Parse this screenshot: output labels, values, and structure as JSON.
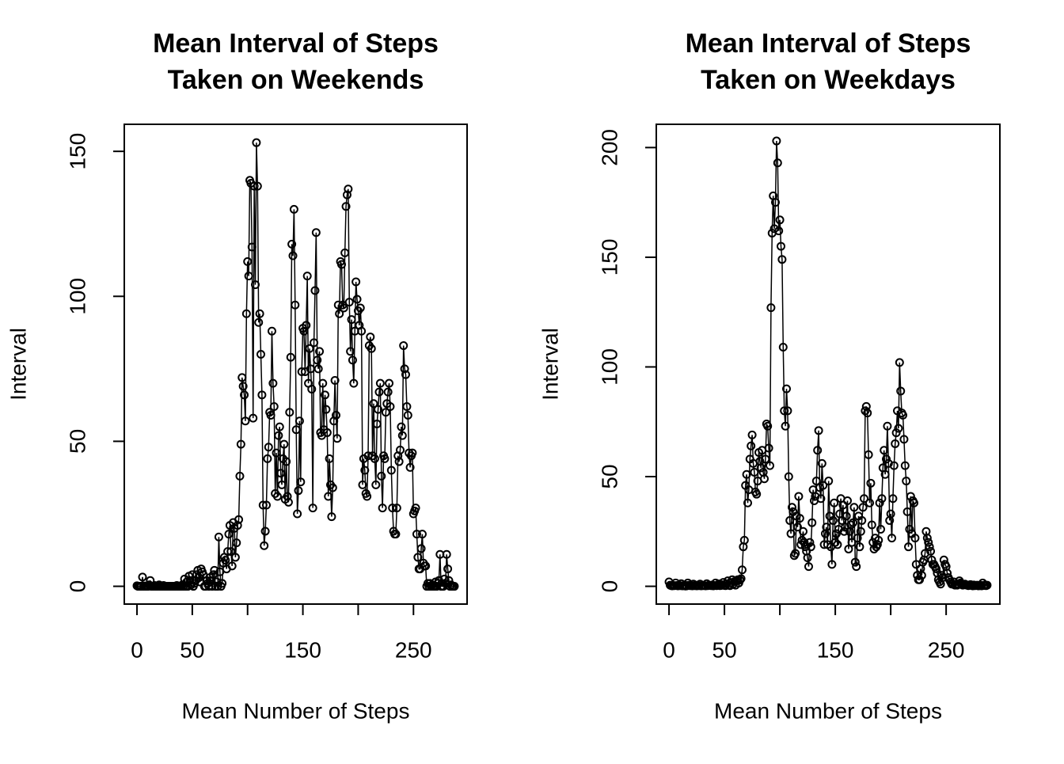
{
  "chart_data": [
    {
      "type": "line",
      "title": [
        "Mean Interval of Steps",
        "Taken on Weekends"
      ],
      "xlabel": "Mean Number of Steps",
      "ylabel": "Interval",
      "marker": "circle",
      "xlim": [
        -11.48,
        298.48
      ],
      "ylim": [
        -6.13,
        159.33
      ],
      "xticks": [
        0,
        50,
        {
          "value": 100,
          "label": null
        },
        150,
        {
          "value": 200,
          "label": null
        },
        250
      ],
      "yticks": [
        0,
        50,
        100,
        150
      ],
      "x": [
        0,
        1,
        2,
        3,
        4,
        5,
        6,
        7,
        8,
        9,
        10,
        11,
        12,
        13,
        14,
        15,
        16,
        17,
        18,
        19,
        20,
        21,
        22,
        23,
        24,
        25,
        26,
        27,
        28,
        29,
        30,
        31,
        32,
        33,
        34,
        35,
        36,
        37,
        38,
        39,
        40,
        41,
        42,
        43,
        44,
        45,
        46,
        47,
        48,
        49,
        50,
        51,
        52,
        53,
        54,
        55,
        56,
        57,
        58,
        59,
        60,
        61,
        62,
        63,
        64,
        65,
        66,
        67,
        68,
        69,
        70,
        71,
        72,
        73,
        74,
        75,
        76,
        77,
        78,
        79,
        80,
        81,
        82,
        83,
        84,
        85,
        86,
        87,
        88,
        89,
        90,
        91,
        92,
        93,
        94,
        95,
        96,
        97,
        98,
        99,
        100,
        101,
        102,
        103,
        104,
        105,
        106,
        107,
        108,
        109,
        110,
        111,
        112,
        113,
        114,
        115,
        116,
        117,
        118,
        119,
        120,
        121,
        122,
        123,
        124,
        125,
        126,
        127,
        128,
        129,
        130,
        131,
        132,
        133,
        134,
        135,
        136,
        137,
        138,
        139,
        140,
        141,
        142,
        143,
        144,
        145,
        146,
        147,
        148,
        149,
        150,
        151,
        152,
        153,
        154,
        155,
        156,
        157,
        158,
        159,
        160,
        161,
        162,
        163,
        164,
        165,
        166,
        167,
        168,
        169,
        170,
        171,
        172,
        173,
        174,
        175,
        176,
        177,
        178,
        179,
        180,
        181,
        182,
        183,
        184,
        185,
        186,
        187,
        188,
        189,
        190,
        191,
        192,
        193,
        194,
        195,
        196,
        197,
        198,
        199,
        200,
        201,
        202,
        203,
        204,
        205,
        206,
        207,
        208,
        209,
        210,
        211,
        212,
        213,
        214,
        215,
        216,
        217,
        218,
        219,
        220,
        221,
        222,
        223,
        224,
        225,
        226,
        227,
        228,
        229,
        230,
        231,
        232,
        233,
        234,
        235,
        236,
        237,
        238,
        239,
        240,
        241,
        242,
        243,
        244,
        245,
        246,
        247,
        248,
        249,
        250,
        251,
        252,
        253,
        254,
        255,
        256,
        257,
        258,
        259,
        260,
        261,
        262,
        263,
        264,
        265,
        266,
        267,
        268,
        269,
        270,
        271,
        272,
        273,
        274,
        275,
        276,
        277,
        278,
        279,
        280,
        281,
        282,
        283,
        284,
        285,
        286,
        287
      ],
      "series": [
        {
          "color": "#000000",
          "values": [
            0.2,
            0,
            0,
            0,
            0,
            3.2,
            0,
            0.1,
            0,
            0,
            0,
            0.5,
            2,
            0,
            0,
            0,
            0.3,
            0,
            0,
            0,
            0.5,
            0,
            0,
            0,
            0.3,
            0,
            0,
            0,
            0,
            0,
            0,
            0,
            0,
            0,
            0,
            0,
            0.3,
            0,
            0,
            0,
            0,
            0.5,
            0,
            2.5,
            0,
            1.5,
            0,
            3.5,
            2,
            0.5,
            4,
            0,
            1,
            2,
            4,
            5.5,
            3,
            1.5,
            6,
            5,
            4,
            0,
            0,
            2,
            1,
            0,
            3,
            2,
            0,
            4,
            5.5,
            0,
            1.5,
            0,
            17,
            5,
            0,
            1,
            8,
            10,
            9,
            6,
            12,
            18,
            21,
            12,
            7,
            22,
            20,
            10,
            15,
            21,
            23,
            38,
            49,
            72,
            69,
            66,
            57,
            94,
            112,
            107,
            140,
            139,
            117,
            58,
            138,
            104,
            153,
            138,
            91,
            94,
            80,
            66,
            28,
            14,
            19,
            28,
            44,
            48,
            60,
            59,
            88,
            70,
            62,
            32,
            46,
            31,
            52,
            55,
            39,
            35,
            44,
            49,
            30,
            43,
            31,
            29,
            60,
            79,
            118,
            114,
            130,
            97,
            54,
            25,
            33,
            57,
            36,
            74,
            89,
            88,
            74,
            90,
            107,
            70,
            82,
            75,
            68,
            27,
            84,
            102,
            122,
            78,
            75,
            81,
            53,
            52,
            70,
            54,
            66,
            61,
            53,
            31,
            44,
            35,
            24,
            34,
            57,
            71,
            59,
            51,
            97,
            94,
            112,
            111,
            97,
            96,
            115,
            131,
            135,
            137,
            98,
            81,
            92,
            78,
            70,
            88,
            105,
            99,
            95,
            90,
            96,
            88,
            35,
            44,
            40,
            32,
            31,
            45,
            83,
            86,
            82,
            45,
            63,
            44,
            35,
            56,
            61,
            67,
            70,
            38,
            27,
            45,
            44,
            60,
            63,
            67,
            70,
            62,
            40,
            27,
            19,
            18,
            18,
            27,
            45,
            43,
            47,
            55,
            52,
            83,
            75,
            73,
            62,
            59,
            46,
            41,
            45,
            46,
            25,
            26,
            27,
            18,
            10,
            6,
            6,
            13,
            18,
            8,
            7,
            7,
            0,
            1,
            0,
            1,
            0,
            0.5,
            0,
            0,
            1.5,
            0,
            1,
            2,
            11,
            0,
            0,
            0,
            2.5,
            1,
            11,
            6,
            2,
            0,
            0.5,
            0,
            0,
            0
          ]
        }
      ]
    },
    {
      "type": "line",
      "title": [
        "Mean Interval of Steps",
        "Taken on Weekdays"
      ],
      "xlabel": "Mean Number of Steps",
      "ylabel": "Interval",
      "marker": "circle",
      "xlim": [
        -11.48,
        298.48
      ],
      "ylim": [
        -8.1,
        210.6
      ],
      "xticks": [
        0,
        50,
        {
          "value": 100,
          "label": null
        },
        150,
        {
          "value": 200,
          "label": null
        },
        250
      ],
      "yticks": [
        0,
        50,
        100,
        150,
        200
      ],
      "x": [
        0,
        1,
        2,
        3,
        4,
        5,
        6,
        7,
        8,
        9,
        10,
        11,
        12,
        13,
        14,
        15,
        16,
        17,
        18,
        19,
        20,
        21,
        22,
        23,
        24,
        25,
        26,
        27,
        28,
        29,
        30,
        31,
        32,
        33,
        34,
        35,
        36,
        37,
        38,
        39,
        40,
        41,
        42,
        43,
        44,
        45,
        46,
        47,
        48,
        49,
        50,
        51,
        52,
        53,
        54,
        55,
        56,
        57,
        58,
        59,
        60,
        61,
        62,
        63,
        64,
        65,
        66,
        67,
        68,
        69,
        70,
        71,
        72,
        73,
        74,
        75,
        76,
        77,
        78,
        79,
        80,
        81,
        82,
        83,
        84,
        85,
        86,
        87,
        88,
        89,
        90,
        91,
        92,
        93,
        94,
        95,
        96,
        97,
        98,
        99,
        100,
        101,
        102,
        103,
        104,
        105,
        106,
        107,
        108,
        109,
        110,
        111,
        112,
        113,
        114,
        115,
        116,
        117,
        118,
        119,
        120,
        121,
        122,
        123,
        124,
        125,
        126,
        127,
        128,
        129,
        130,
        131,
        132,
        133,
        134,
        135,
        136,
        137,
        138,
        139,
        140,
        141,
        142,
        143,
        144,
        145,
        146,
        147,
        148,
        149,
        150,
        151,
        152,
        153,
        154,
        155,
        156,
        157,
        158,
        159,
        160,
        161,
        162,
        163,
        164,
        165,
        166,
        167,
        168,
        169,
        170,
        171,
        172,
        173,
        174,
        175,
        176,
        177,
        178,
        179,
        180,
        181,
        182,
        183,
        184,
        185,
        186,
        187,
        188,
        189,
        190,
        191,
        192,
        193,
        194,
        195,
        196,
        197,
        198,
        199,
        200,
        201,
        202,
        203,
        204,
        205,
        206,
        207,
        208,
        209,
        210,
        211,
        212,
        213,
        214,
        215,
        216,
        217,
        218,
        219,
        220,
        221,
        222,
        223,
        224,
        225,
        226,
        227,
        228,
        229,
        230,
        231,
        232,
        233,
        234,
        235,
        236,
        237,
        238,
        239,
        240,
        241,
        242,
        243,
        244,
        245,
        246,
        247,
        248,
        249,
        250,
        251,
        252,
        253,
        254,
        255,
        256,
        257,
        258,
        259,
        260,
        261,
        262,
        263,
        264,
        265,
        266,
        267,
        268,
        269,
        270,
        271,
        272,
        273,
        274,
        275,
        276,
        277,
        278,
        279,
        280,
        281,
        282,
        283,
        284,
        285,
        286,
        287
      ],
      "series": [
        {
          "color": "#000000",
          "values": [
            2,
            0.5,
            0.3,
            0.2,
            0.4,
            0.3,
            1.5,
            0.4,
            0.2,
            0.5,
            0.3,
            1.2,
            0.2,
            0.3,
            0.6,
            0.1,
            0.2,
            1.5,
            0.5,
            0.3,
            0.4,
            0.2,
            1,
            0.3,
            0.5,
            0.2,
            0.4,
            0.3,
            1,
            0.2,
            0.5,
            0.3,
            0.4,
            0.2,
            1.2,
            0.3,
            0.5,
            0.4,
            0.3,
            0.6,
            0.2,
            0.4,
            1.5,
            0.3,
            0.5,
            1.1,
            0.3,
            0.4,
            0.7,
            1.8,
            0.4,
            0.3,
            1.2,
            2.5,
            0.5,
            0.3,
            1.5,
            3,
            1,
            2.2,
            0.5,
            2.5,
            3,
            1.5,
            2.8,
            3.5,
            7.5,
            18,
            21,
            46,
            51,
            38,
            44,
            58,
            64,
            69,
            56,
            52,
            43,
            42,
            48,
            61,
            57,
            54,
            62,
            52,
            49,
            58,
            74,
            73,
            63,
            55,
            127,
            161,
            178,
            163,
            175,
            203,
            193,
            162,
            167,
            155,
            149,
            109,
            80,
            73,
            90,
            80,
            50,
            30,
            24,
            36,
            34,
            14,
            15,
            32,
            27,
            41,
            31,
            19,
            21,
            25,
            20,
            18,
            16,
            13,
            9,
            20,
            18,
            29,
            44,
            39,
            41,
            48,
            62,
            71,
            45,
            40,
            56,
            46,
            19,
            24,
            27,
            19,
            48,
            32,
            18,
            10,
            30,
            38,
            20,
            24,
            19,
            26,
            33,
            40,
            30,
            37,
            25,
            27,
            32,
            39,
            17,
            25,
            28,
            20,
            29,
            36,
            11,
            9,
            22,
            32,
            18,
            25,
            30,
            36,
            40,
            80,
            82,
            79,
            60,
            38,
            47,
            28,
            20,
            17,
            22,
            18,
            19,
            21,
            38,
            26,
            40,
            54,
            62,
            51,
            58,
            73,
            56,
            30,
            33,
            22,
            40,
            55,
            65,
            70,
            80,
            72,
            102,
            89,
            79,
            78,
            67,
            55,
            48,
            34,
            18,
            26,
            41,
            24,
            39,
            38,
            22,
            10,
            5,
            3,
            3,
            8,
            5,
            11,
            12,
            15,
            25,
            22,
            20,
            18,
            16,
            12,
            10,
            10,
            9,
            8,
            6,
            3,
            2,
            1,
            5,
            4,
            12,
            10,
            9,
            6,
            4,
            3,
            2,
            1,
            1,
            2,
            0.5,
            1,
            0.5,
            1,
            2.5,
            1.5,
            1,
            0.5,
            0.8,
            1,
            0.6,
            0.5,
            0.3,
            0.5,
            0.8,
            0.4,
            0.2,
            0.6,
            0.3,
            0.4,
            0.5,
            0.2,
            0.3,
            0.5,
            0.2,
            1.5,
            0.4,
            0.6,
            0.3,
            0.5
          ]
        }
      ]
    }
  ]
}
